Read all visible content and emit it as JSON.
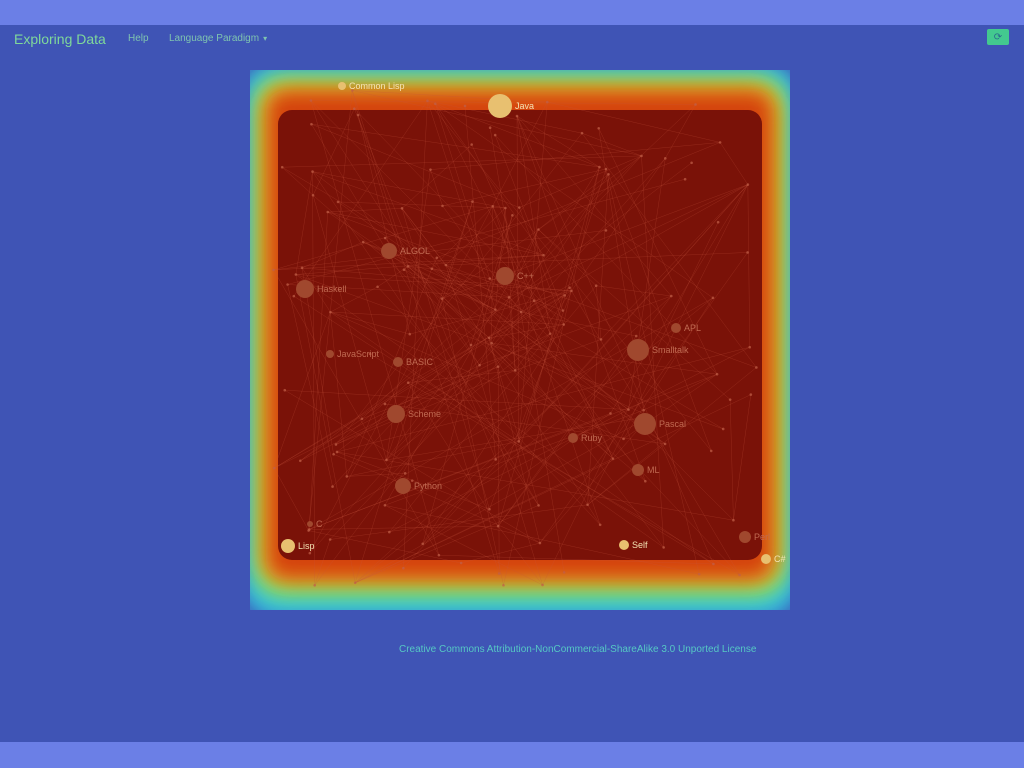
{
  "navbar": {
    "brand": "Exploring Data",
    "help_label": "Help",
    "paradigm_label": "Language Paradigm",
    "refresh_icon": "refresh-icon"
  },
  "graph": {
    "nodes": [
      {
        "label": "Common Lisp"
      },
      {
        "label": "Java"
      },
      {
        "label": "ALGOL"
      },
      {
        "label": "C++"
      },
      {
        "label": "Haskell"
      },
      {
        "label": "APL"
      },
      {
        "label": "Smalltalk"
      },
      {
        "label": "JavaScript"
      },
      {
        "label": "BASIC"
      },
      {
        "label": "Scheme"
      },
      {
        "label": "Pascal"
      },
      {
        "label": "Ruby"
      },
      {
        "label": "ML"
      },
      {
        "label": "Python"
      },
      {
        "label": "C"
      },
      {
        "label": "Lisp"
      },
      {
        "label": "Self"
      },
      {
        "label": "Perl"
      },
      {
        "label": "C#"
      }
    ]
  },
  "footer": {
    "license": "Creative Commons Attribution-NonCommercial-ShareAlike 3.0 Unported License"
  },
  "colors": {
    "background": "#3f54b5",
    "heat_core": "#7a1208",
    "heat_edge": "#d4420f",
    "accent": "#43c98f"
  }
}
